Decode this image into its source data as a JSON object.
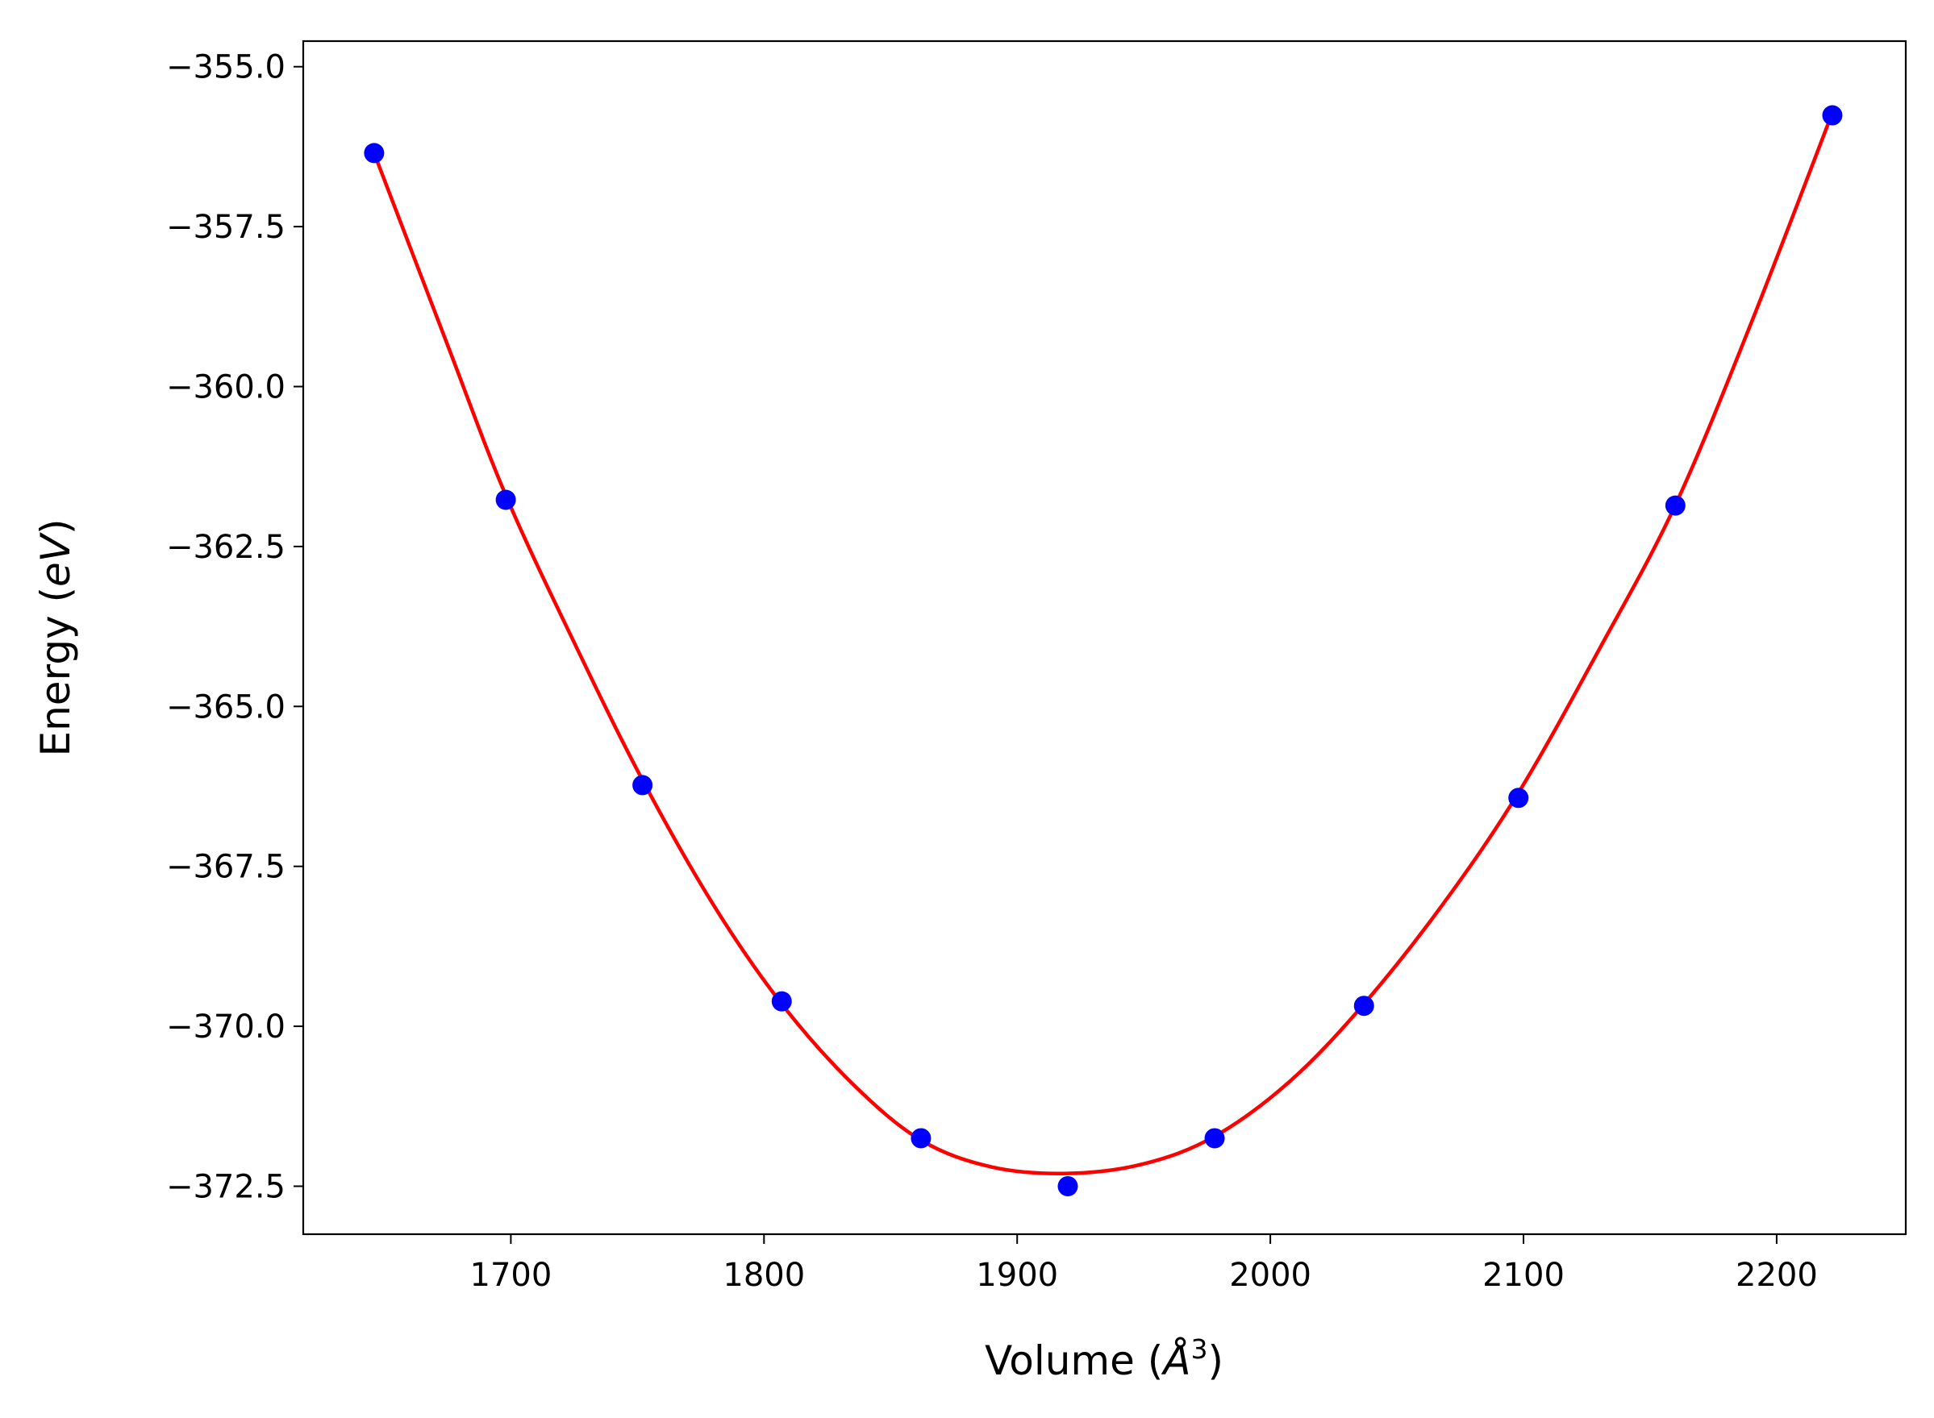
{
  "chart_data": {
    "type": "scatter",
    "title": "",
    "xlabel_prefix": "Volume (",
    "xlabel_unit": "Å",
    "xlabel_exp": "3",
    "xlabel_suffix": ")",
    "ylabel_prefix": "Energy (",
    "ylabel_unit": "eV",
    "ylabel_suffix": ")",
    "xlim": [
      1618,
      2251
    ],
    "ylim": [
      -373.25,
      -354.6
    ],
    "xticks": [
      {
        "value": 1700,
        "label": "1700"
      },
      {
        "value": 1800,
        "label": "1800"
      },
      {
        "value": 1900,
        "label": "1900"
      },
      {
        "value": 2000,
        "label": "2000"
      },
      {
        "value": 2100,
        "label": "2100"
      },
      {
        "value": 2200,
        "label": "2200"
      }
    ],
    "yticks": [
      {
        "value": -355.0,
        "label": "−355.0"
      },
      {
        "value": -357.5,
        "label": "−357.5"
      },
      {
        "value": -360.0,
        "label": "−360.0"
      },
      {
        "value": -362.5,
        "label": "−362.5"
      },
      {
        "value": -365.0,
        "label": "−365.0"
      },
      {
        "value": -367.5,
        "label": "−367.5"
      },
      {
        "value": -370.0,
        "label": "−370.0"
      },
      {
        "value": -372.5,
        "label": "−372.5"
      }
    ],
    "grid": false,
    "legend": "none",
    "series": [
      {
        "kind": "points",
        "color": "#0000ff",
        "x": [
          1646,
          1698,
          1752,
          1807,
          1862,
          1920,
          1978,
          2037,
          2098,
          2160,
          2222
        ],
        "y": [
          -356.35,
          -361.77,
          -366.23,
          -369.61,
          -371.75,
          -372.5,
          -371.75,
          -369.68,
          -366.43,
          -361.86,
          -355.76
        ]
      },
      {
        "kind": "fit-curve",
        "color": "#ff0000",
        "x": [
          1646,
          1675,
          1698,
          1725,
          1752,
          1780,
          1807,
          1835,
          1862,
          1890,
          1920,
          1950,
          1978,
          2008,
          2037,
          2068,
          2098,
          2130,
          2160,
          2190,
          2222
        ],
        "y": [
          -356.35,
          -359.35,
          -361.7,
          -364.0,
          -366.15,
          -368.1,
          -369.65,
          -370.9,
          -371.78,
          -372.2,
          -372.3,
          -372.15,
          -371.72,
          -370.85,
          -369.65,
          -368.1,
          -366.35,
          -364.1,
          -361.85,
          -359.0,
          -355.72
        ]
      }
    ]
  }
}
